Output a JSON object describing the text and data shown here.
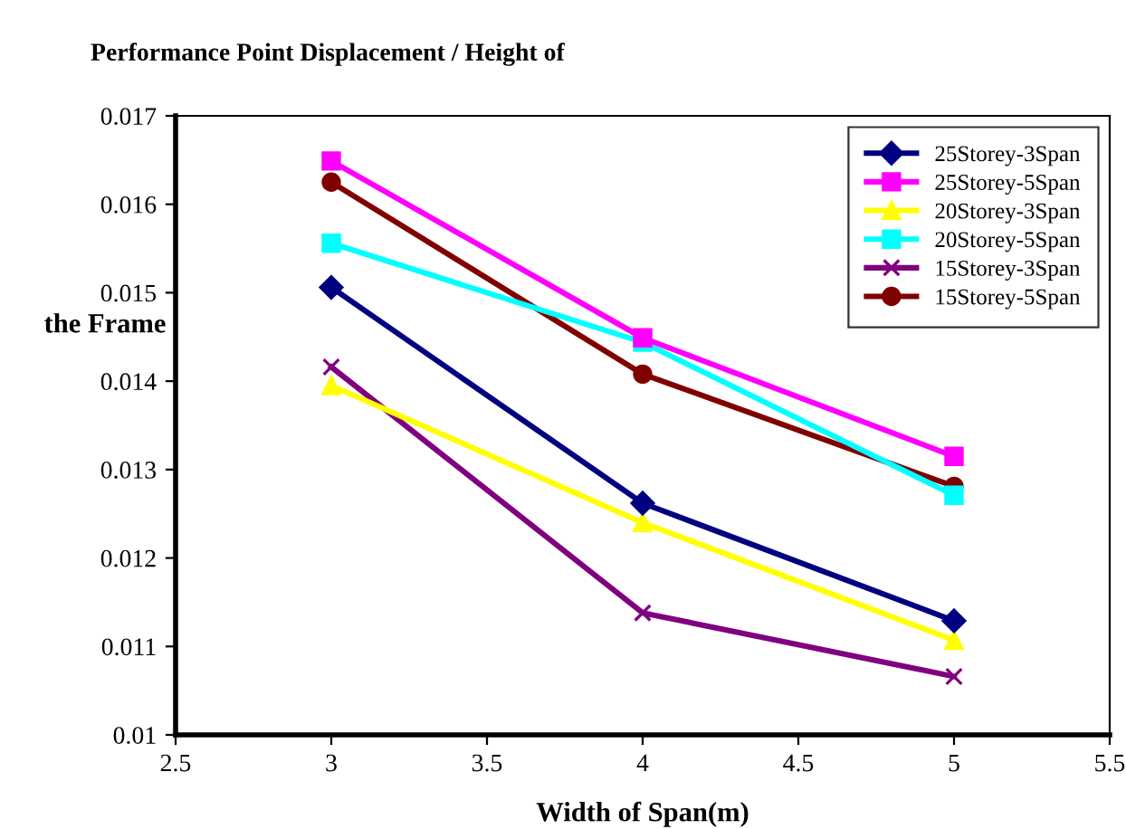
{
  "chart_data": {
    "type": "line",
    "title": "Performance Point Displacement / Height of",
    "ylabel": "the Frame",
    "xlabel": "Width of Span(m)",
    "x": [
      3,
      4,
      5
    ],
    "series": [
      {
        "name": "25Storey-3Span",
        "color": "#000080",
        "marker": "diamond",
        "values": [
          0.01506,
          0.01262,
          0.01129
        ]
      },
      {
        "name": "25Storey-5Span",
        "color": "#ff00ff",
        "marker": "square",
        "values": [
          0.01649,
          0.01449,
          0.01315
        ]
      },
      {
        "name": "20Storey-3Span",
        "color": "#ffff00",
        "marker": "triangle",
        "values": [
          0.01395,
          0.0124,
          0.01107
        ]
      },
      {
        "name": "20Storey-5Span",
        "color": "#00ffff",
        "marker": "square",
        "values": [
          0.01556,
          0.01444,
          0.01271
        ]
      },
      {
        "name": "15Storey-3Span",
        "color": "#800080",
        "marker": "cross",
        "values": [
          0.01416,
          0.01138,
          0.01066
        ]
      },
      {
        "name": "15Storey-5Span",
        "color": "#800000",
        "marker": "circle",
        "values": [
          0.01625,
          0.01408,
          0.01281
        ]
      }
    ],
    "xlim": [
      2.5,
      5.5
    ],
    "xticks": [
      2.5,
      3,
      3.5,
      4,
      4.5,
      5,
      5.5
    ],
    "ylim": [
      0.01,
      0.017
    ],
    "yticks": [
      0.01,
      0.011,
      0.012,
      0.013,
      0.014,
      0.015,
      0.016,
      0.017
    ],
    "grid": false,
    "legend": "top right",
    "line_style": "solid"
  }
}
